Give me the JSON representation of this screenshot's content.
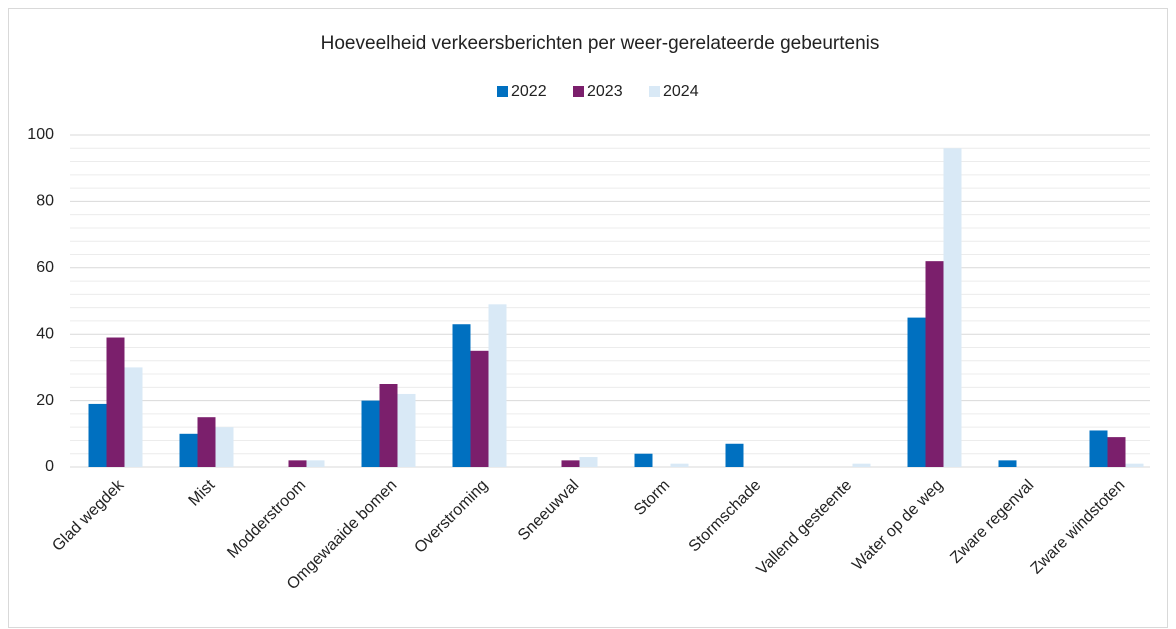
{
  "chart_data": {
    "type": "bar",
    "title": "Hoeveelheid verkeersberichten per weer-gerelateerde gebeurtenis",
    "categories": [
      "Glad wegdek",
      "Mist",
      "Modderstroom",
      "Omgewaaide bomen",
      "Overstroming",
      "Sneeuwval",
      "Storm",
      "Stormschade",
      "Vallend gesteente",
      "Water op de weg",
      "Zware regenval",
      "Zware windstoten"
    ],
    "series": [
      {
        "name": "2022",
        "color": "#0070c0",
        "values": [
          19,
          10,
          0,
          20,
          43,
          0,
          4,
          7,
          0,
          45,
          2,
          11
        ]
      },
      {
        "name": "2023",
        "color": "#7b1f6c",
        "values": [
          39,
          15,
          2,
          25,
          35,
          2,
          0,
          0,
          0,
          62,
          0,
          9
        ]
      },
      {
        "name": "2024",
        "color": "#d9e9f6",
        "values": [
          30,
          12,
          2,
          22,
          49,
          3,
          1,
          0,
          1,
          96,
          0,
          1
        ]
      }
    ],
    "ylim": [
      0,
      100
    ],
    "yticks": [
      0,
      20,
      40,
      60,
      80,
      100
    ],
    "minor_yticks": [
      4,
      8,
      12,
      16,
      24,
      28,
      32,
      36,
      44,
      48,
      52,
      56,
      64,
      68,
      72,
      76,
      84,
      88,
      92,
      96
    ],
    "grid": true,
    "legend": "top"
  }
}
